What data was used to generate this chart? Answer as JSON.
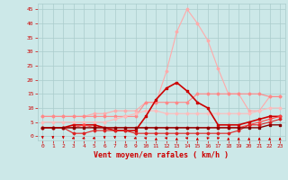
{
  "x": [
    0,
    1,
    2,
    3,
    4,
    5,
    6,
    7,
    8,
    9,
    10,
    11,
    12,
    13,
    14,
    15,
    16,
    17,
    18,
    19,
    20,
    21,
    22,
    23
  ],
  "series": [
    {
      "color": "#ffaaaa",
      "lw": 0.8,
      "marker": "D",
      "ms": 1.5,
      "values": [
        7,
        7,
        7,
        7,
        7,
        8,
        8,
        9,
        9,
        9,
        12,
        12,
        23,
        37,
        45,
        40,
        34,
        24,
        15,
        15,
        9,
        9,
        14,
        14
      ]
    },
    {
      "color": "#ff8888",
      "lw": 0.8,
      "marker": "D",
      "ms": 1.5,
      "values": [
        7,
        7,
        7,
        7,
        7,
        7,
        7,
        7,
        7,
        7,
        12,
        12,
        12,
        12,
        12,
        15,
        15,
        15,
        15,
        15,
        15,
        15,
        14,
        14
      ]
    },
    {
      "color": "#ffbbbb",
      "lw": 0.8,
      "marker": "D",
      "ms": 1.5,
      "values": [
        5,
        5,
        5,
        5,
        5,
        5,
        5,
        6,
        7,
        8,
        9,
        9,
        8,
        8,
        8,
        8,
        8,
        8,
        8,
        8,
        8,
        9,
        10,
        10
      ]
    },
    {
      "color": "#cc0000",
      "lw": 1.2,
      "marker": "s",
      "ms": 1.8,
      "values": [
        3,
        3,
        3,
        4,
        4,
        4,
        3,
        2,
        2,
        2,
        7,
        13,
        17,
        19,
        16,
        12,
        10,
        4,
        4,
        4,
        5,
        6,
        7,
        7
      ]
    },
    {
      "color": "#ff4444",
      "lw": 0.8,
      "marker": "D",
      "ms": 1.5,
      "values": [
        3,
        3,
        3,
        3,
        4,
        3,
        3,
        3,
        3,
        3,
        3,
        3,
        3,
        3,
        3,
        3,
        3,
        3,
        3,
        3,
        4,
        5,
        6,
        7
      ]
    },
    {
      "color": "#dd2222",
      "lw": 0.8,
      "marker": "D",
      "ms": 1.5,
      "values": [
        3,
        3,
        3,
        1,
        1,
        2,
        2,
        2,
        2,
        1,
        1,
        1,
        1,
        1,
        1,
        1,
        1,
        1,
        1,
        2,
        4,
        4,
        5,
        6
      ]
    },
    {
      "color": "#880000",
      "lw": 1.0,
      "marker": "s",
      "ms": 1.5,
      "values": [
        3,
        3,
        3,
        3,
        3,
        3,
        3,
        3,
        3,
        3,
        3,
        3,
        3,
        3,
        3,
        3,
        3,
        3,
        3,
        3,
        3,
        3,
        4,
        4
      ]
    }
  ],
  "arrows": {
    "x": [
      0,
      1,
      2,
      3,
      4,
      5,
      6,
      7,
      8,
      9,
      10,
      11,
      12,
      13,
      14,
      15,
      16,
      17,
      18,
      19,
      20,
      21,
      22,
      23
    ],
    "direction": [
      "down",
      "down",
      "down",
      "left_down",
      "left_down",
      "left_down",
      "down",
      "down",
      "down",
      "left_down",
      "left_up",
      "up",
      "left_up",
      "up",
      "left_up",
      "up",
      "up_right",
      "up_right",
      "up",
      "up",
      "up",
      "up",
      "up",
      "up"
    ]
  },
  "arrow_color": "#cc0000",
  "bg_color": "#cce8e8",
  "grid_color": "#aacccc",
  "xlabel": "Vent moyen/en rafales ( km/h )",
  "xlabel_color": "#cc0000",
  "xlabel_fontsize": 6,
  "yticks": [
    0,
    5,
    10,
    15,
    20,
    25,
    30,
    35,
    40,
    45
  ],
  "xticks": [
    0,
    1,
    2,
    3,
    4,
    5,
    6,
    7,
    8,
    9,
    10,
    11,
    12,
    13,
    14,
    15,
    16,
    17,
    18,
    19,
    20,
    21,
    22,
    23
  ],
  "tick_color": "#cc0000",
  "tick_fontsize": 4.5,
  "ylim": [
    -1.5,
    47
  ],
  "xlim": [
    -0.5,
    23.5
  ]
}
